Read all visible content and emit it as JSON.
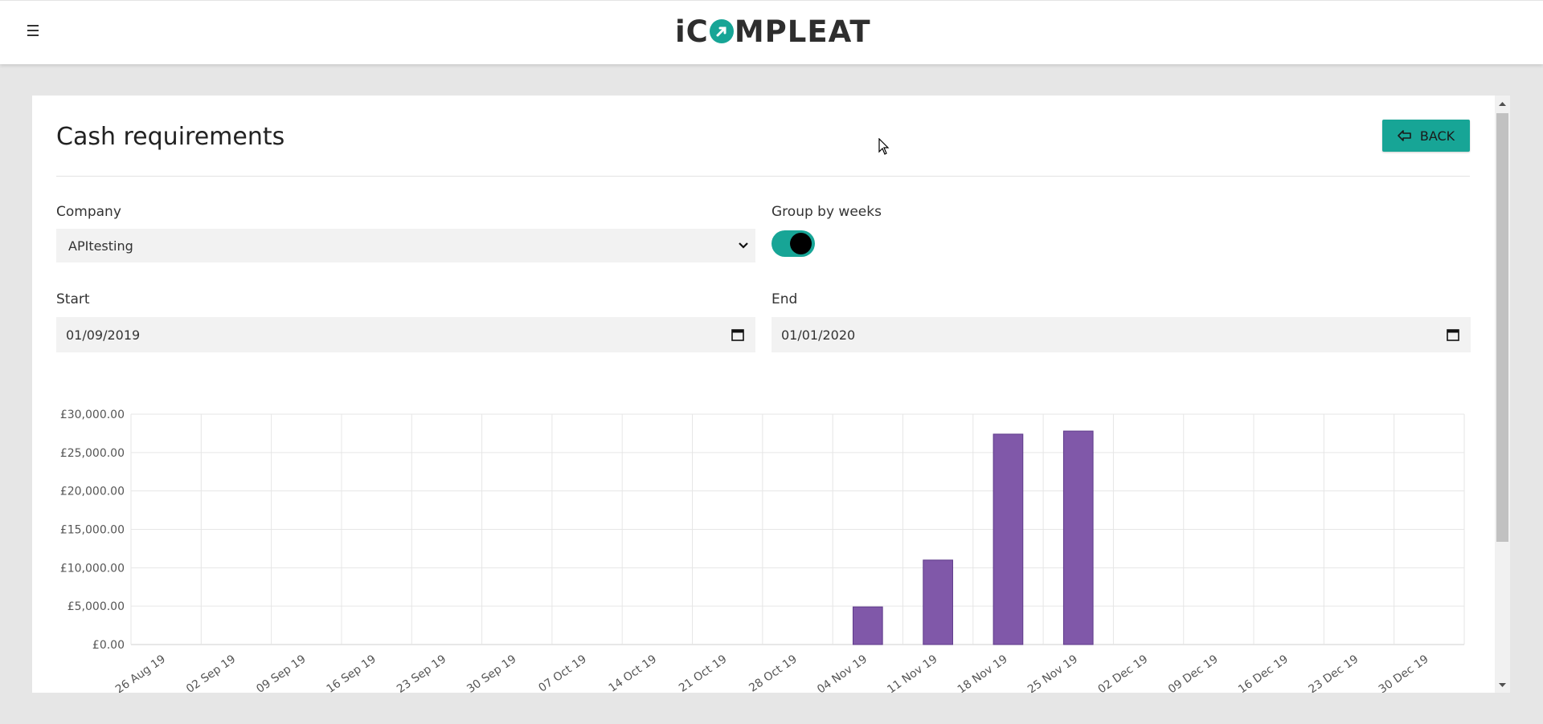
{
  "header": {
    "logo_left": "iC",
    "logo_right": "MPLEAT"
  },
  "page": {
    "title": "Cash requirements",
    "back_label": "BACK"
  },
  "form": {
    "company_label": "Company",
    "company_value": "APItesting",
    "group_label": "Group by weeks",
    "group_by_weeks": true,
    "start_label": "Start",
    "start_value": "01/09/2019",
    "end_label": "End",
    "end_value": "01/01/2020"
  },
  "colors": {
    "accent": "#17a596",
    "bar": "#8058a9"
  },
  "icons": {
    "menu": "hamburger-icon",
    "back": "arrow-left-icon",
    "calendar": "calendar-icon",
    "select": "chevron-down-icon"
  },
  "chart_data": {
    "type": "bar",
    "categories": [
      "26 Aug 19",
      "02 Sep 19",
      "09 Sep 19",
      "16 Sep 19",
      "23 Sep 19",
      "30 Sep 19",
      "07 Oct 19",
      "14 Oct 19",
      "21 Oct 19",
      "28 Oct 19",
      "04 Nov 19",
      "11 Nov 19",
      "18 Nov 19",
      "25 Nov 19",
      "02 Dec 19",
      "09 Dec 19",
      "16 Dec 19",
      "23 Dec 19",
      "30 Dec 19"
    ],
    "values": [
      0,
      0,
      0,
      0,
      0,
      0,
      0,
      0,
      0,
      0,
      4900,
      11000,
      27400,
      27800,
      0,
      0,
      0,
      0,
      0
    ],
    "ylim": [
      0,
      30000
    ],
    "yticks": [
      0,
      5000,
      10000,
      15000,
      20000,
      25000,
      30000
    ],
    "ytick_labels": [
      "£0.00",
      "£5,000.00",
      "£10,000.00",
      "£15,000.00",
      "£20,000.00",
      "£25,000.00",
      "£30,000.00"
    ],
    "grid": true
  }
}
